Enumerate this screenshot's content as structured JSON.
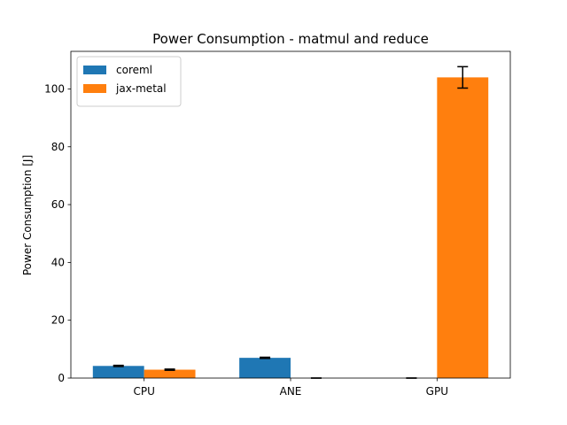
{
  "chart_data": {
    "type": "bar",
    "title": "Power Consumption - matmul and reduce",
    "xlabel": "",
    "ylabel": "Power Consumption [J]",
    "categories": [
      "CPU",
      "ANE",
      "GPU"
    ],
    "ylim": [
      0,
      113
    ],
    "yticks": [
      0,
      20,
      40,
      60,
      80,
      100
    ],
    "grid": false,
    "legend_position": "top-left",
    "series": [
      {
        "name": "coreml",
        "color": "#1f77b4",
        "values": [
          4.2,
          7.0,
          0.0
        ],
        "errors": [
          0.2,
          0.2,
          0.0
        ]
      },
      {
        "name": "jax-metal",
        "color": "#ff7f0e",
        "values": [
          2.9,
          0.0,
          104.0
        ],
        "errors": [
          0.2,
          0.0,
          3.7
        ]
      }
    ]
  }
}
